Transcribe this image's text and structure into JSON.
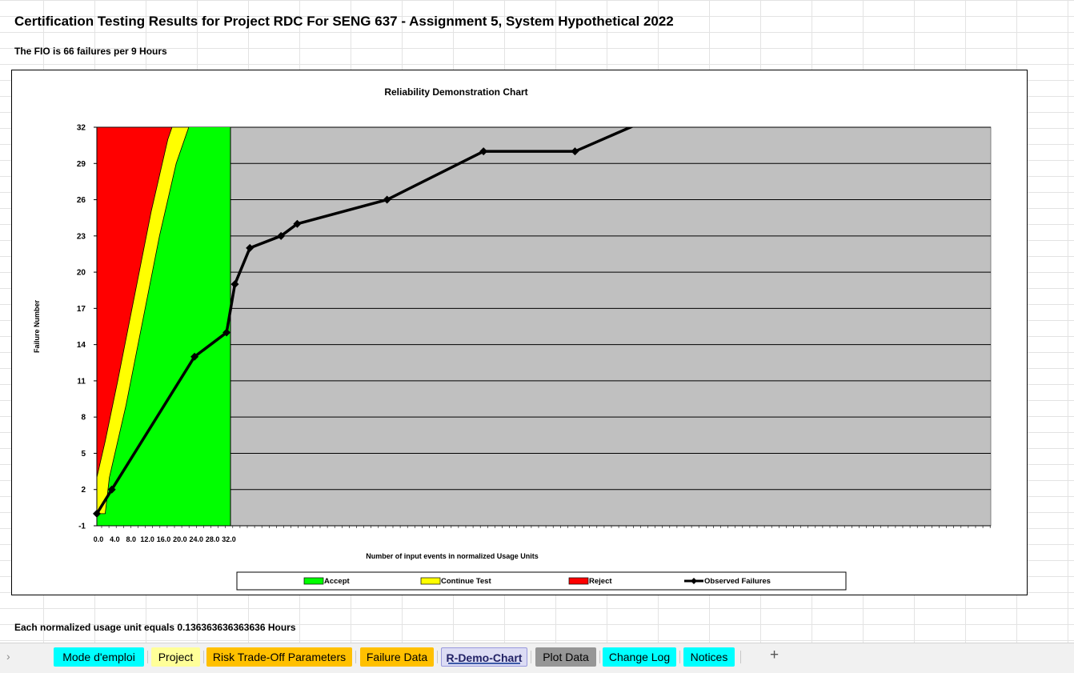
{
  "sheet": {
    "title": "Certification Testing Results for Project RDC For SENG 637 - Assignment 5, System Hypothetical 2022",
    "fio_text": "The FIO is 66 failures per 9 Hours",
    "footnote": "Each normalized usage unit equals 0.136363636363636 Hours"
  },
  "chart_data": {
    "type": "area",
    "title": "Reliability Demonstration Chart",
    "xlabel": "Number of input events in normalized Usage Units",
    "ylabel": "Failure Number",
    "ylim": [
      -1,
      32
    ],
    "yticks": [
      32,
      29,
      26,
      23,
      20,
      17,
      14,
      11,
      8,
      5,
      2,
      -1
    ],
    "xticks": [
      "0.0",
      "4.0",
      "8.0",
      "12.0",
      "16.0",
      "20.0",
      "24.0",
      "28.0",
      "32.0"
    ],
    "grid": true,
    "legend_position": "bottom",
    "legend": [
      "Accept",
      "Continue Test",
      "Reject",
      "Observed Failures"
    ],
    "colors": {
      "plot_bg": "#c0c0c0",
      "accept": "#00ff00",
      "continue": "#ffff00",
      "reject": "#ff0000",
      "observed": "#000000"
    },
    "regions": {
      "reject_boundary": [
        [
          0,
          3
        ],
        [
          2,
          6
        ],
        [
          5,
          11
        ],
        [
          9,
          18
        ],
        [
          13,
          25
        ],
        [
          17,
          31
        ],
        [
          18,
          32
        ]
      ],
      "accept_boundary": [
        [
          2,
          0
        ],
        [
          3,
          3
        ],
        [
          7,
          9
        ],
        [
          11,
          16
        ],
        [
          15,
          23
        ],
        [
          19,
          29
        ],
        [
          22,
          32
        ]
      ],
      "accept_region_end_x": 32
    },
    "series": [
      {
        "name": "Observed Failures",
        "x": [
          0,
          3.6,
          23.5,
          31.2,
          33.2,
          36.8,
          44.3,
          48.2,
          69.8,
          93,
          115,
          135
        ],
        "y": [
          0,
          2,
          13,
          15,
          19,
          22,
          23,
          24,
          26,
          30,
          30,
          33
        ]
      }
    ],
    "x_plot_max": 215
  },
  "tabs": [
    {
      "label": "Mode d'emploi",
      "color": "#00ffff",
      "active": false
    },
    {
      "label": "Project",
      "color": "#ffff99",
      "active": false
    },
    {
      "label": "Risk Trade-Off Parameters",
      "color": "#ffc000",
      "active": false
    },
    {
      "label": "Failure Data",
      "color": "#ffc000",
      "active": false
    },
    {
      "label": "R-Demo-Chart",
      "color": "#dcdcf4",
      "active": true
    },
    {
      "label": "Plot Data",
      "color": "#969696",
      "active": false
    },
    {
      "label": "Change Log",
      "color": "#00ffff",
      "active": false
    },
    {
      "label": "Notices",
      "color": "#00ffff",
      "active": false
    }
  ]
}
